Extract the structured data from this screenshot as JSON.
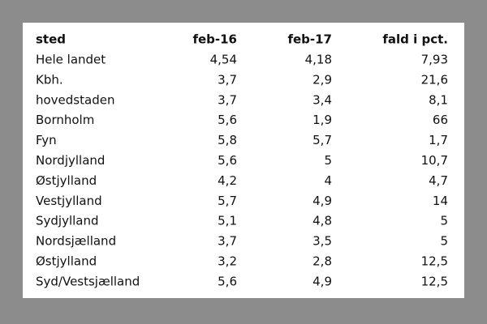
{
  "table": {
    "header": [
      "sted",
      "feb-16",
      "feb-17",
      "fald i pct."
    ],
    "rows": [
      [
        "Hele landet",
        "4,54",
        "4,18",
        "7,93"
      ],
      [
        "Kbh.",
        "3,7",
        "2,9",
        "21,6"
      ],
      [
        "hovedstaden",
        "3,7",
        "3,4",
        "8,1"
      ],
      [
        "Bornholm",
        "5,6",
        "1,9",
        "66"
      ],
      [
        "Fyn",
        "5,8",
        "5,7",
        "1,7"
      ],
      [
        "Nordjylland",
        "5,6",
        "5",
        "10,7"
      ],
      [
        "Østjylland",
        "4,2",
        "4",
        "4,7"
      ],
      [
        "Vestjylland",
        "5,7",
        "4,9",
        "14"
      ],
      [
        "Sydjylland",
        "5,1",
        "4,8",
        "5"
      ],
      [
        "Nordsjælland",
        "3,7",
        "3,5",
        "5"
      ],
      [
        "Østjylland",
        "3,2",
        "2,8",
        "12,5"
      ],
      [
        "Syd/Vestsjælland",
        "5,6",
        "4,9",
        "12,5"
      ]
    ]
  }
}
